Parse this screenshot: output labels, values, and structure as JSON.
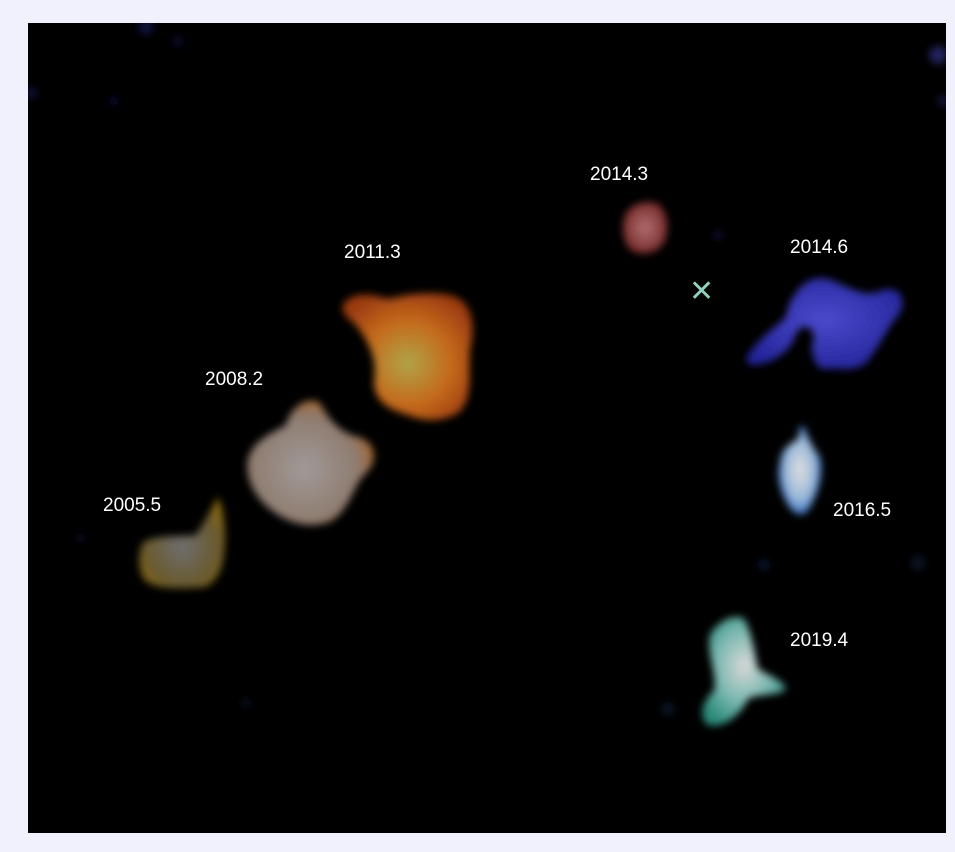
{
  "epochs": [
    {
      "label": "2005.5",
      "color": "#c9a23a"
    },
    {
      "label": "2008.2",
      "color": "#d98a3a"
    },
    {
      "label": "2011.3",
      "color": "#e0701c"
    },
    {
      "label": "2014.3",
      "color": "#d04a4a"
    },
    {
      "label": "2014.6",
      "color": "#3a3ad8"
    },
    {
      "label": "2016.5",
      "color": "#3a8ae0"
    },
    {
      "label": "2019.4",
      "color": "#4ac8b8"
    }
  ],
  "marker": {
    "icon": "cross-marker-icon",
    "color": "#8fd0bf"
  }
}
